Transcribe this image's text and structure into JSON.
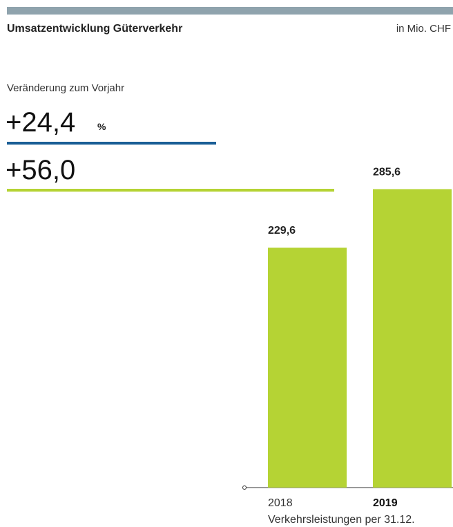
{
  "chart_data": {
    "type": "bar",
    "title": "Umsatzentwicklung Güterverkehr",
    "unit": "in Mio. CHF",
    "change_label": "Veränderung zum Vorjahr",
    "change_percent": "+24,4",
    "percent_sign": "%",
    "change_absolute": "+56,0",
    "categories": [
      "2018",
      "2019"
    ],
    "values": [
      229.6,
      285.6
    ],
    "value_labels": [
      "229,6",
      "285,6"
    ],
    "color": "#b5d334",
    "xlabel": "Verkehrsleistungen per 31.12."
  }
}
